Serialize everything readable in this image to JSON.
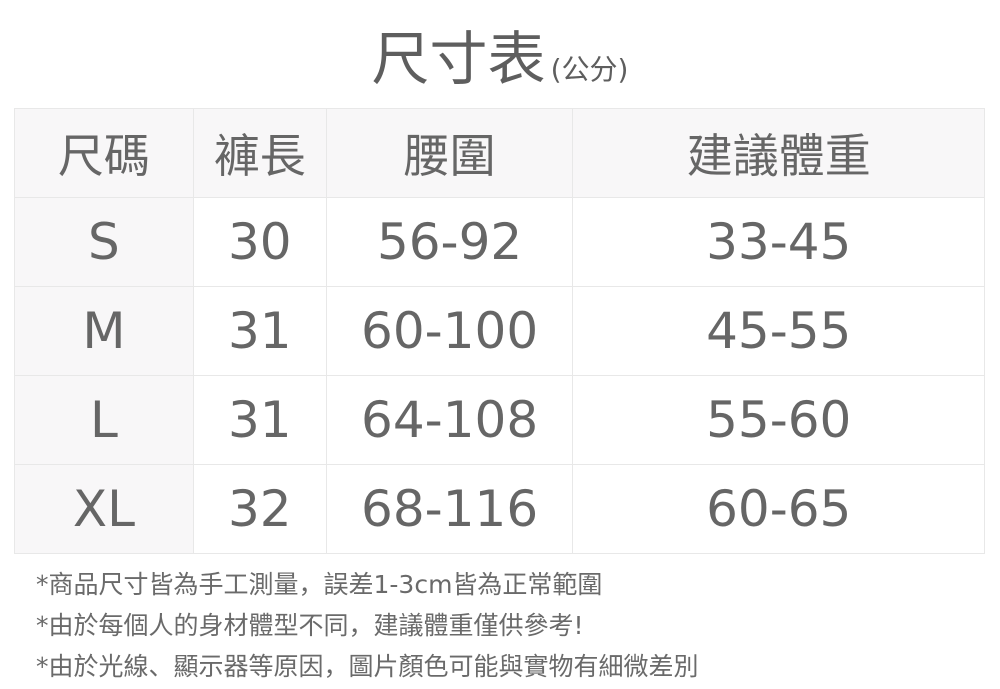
{
  "title": {
    "main": "尺寸表",
    "unit": "(公分)"
  },
  "table": {
    "headers": [
      "尺碼",
      "褲長",
      "腰圍",
      "建議體重"
    ],
    "rows": [
      [
        "S",
        "30",
        "56-92",
        "33-45"
      ],
      [
        "M",
        "31",
        "60-100",
        "45-55"
      ],
      [
        "L",
        "31",
        "64-108",
        "55-60"
      ],
      [
        "XL",
        "32",
        "68-116",
        "60-65"
      ]
    ]
  },
  "notes": [
    "*商品尺寸皆為手工測量，誤差1-3cm皆為正常範圍",
    "*由於每個人的身材體型不同，建議體重僅供參考!",
    "*由於光線、顯示器等原因，圖片顏色可能與實物有細微差別"
  ],
  "colors": {
    "text": "#666666",
    "header_bg": "#f8f7f8",
    "border": "#e8e8e8"
  }
}
